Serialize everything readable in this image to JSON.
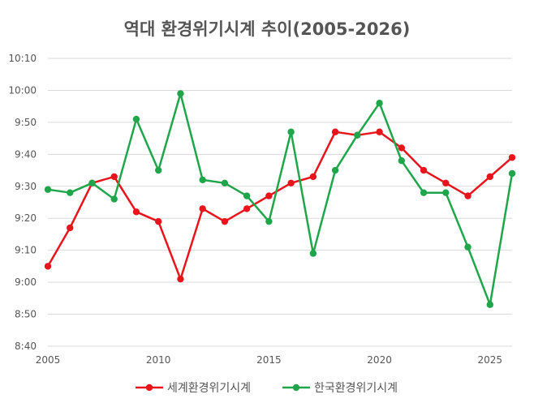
{
  "chart_data": {
    "type": "line",
    "title": "역대 환경위기시계 추이(2005-2026)",
    "xlabel": "",
    "ylabel": "",
    "x": [
      2005,
      2006,
      2007,
      2008,
      2009,
      2010,
      2011,
      2012,
      2013,
      2014,
      2015,
      2016,
      2017,
      2018,
      2019,
      2020,
      2021,
      2022,
      2023,
      2024,
      2025,
      2026
    ],
    "xlim": [
      2005,
      2026
    ],
    "x_ticks": [
      "2005",
      "2010",
      "2015",
      "2020",
      "2025"
    ],
    "y_unit": "minutes after midnight (clock time hh:mm)",
    "ylim": [
      520,
      610
    ],
    "y_ticks": [
      "8:40",
      "8:50",
      "9:00",
      "9:10",
      "9:20",
      "9:30",
      "9:40",
      "9:50",
      "10:00",
      "10:10"
    ],
    "grid": "horizontal",
    "legend_position": "bottom",
    "series": [
      {
        "name": "세계환경위기시계",
        "color": "#e8141c",
        "values": [
          "9:05",
          "9:17",
          "9:31",
          "9:33",
          "9:22",
          "9:19",
          "9:01",
          "9:23",
          "9:19",
          "9:23",
          "9:27",
          "9:31",
          "9:33",
          "9:47",
          "9:46",
          "9:47",
          "9:42",
          "9:35",
          "9:31",
          "9:27",
          "9:33",
          "9:39"
        ]
      },
      {
        "name": "한국환경위기시계",
        "color": "#1fa64a",
        "values": [
          "9:29",
          "9:28",
          "9:31",
          "9:26",
          "9:51",
          "9:35",
          "9:59",
          "9:32",
          "9:31",
          "9:27",
          "9:19",
          "9:47",
          "9:09",
          "9:35",
          "9:46",
          "9:56",
          "9:38",
          "9:28",
          "9:28",
          "9:11",
          "8:53",
          "9:34"
        ]
      }
    ]
  }
}
